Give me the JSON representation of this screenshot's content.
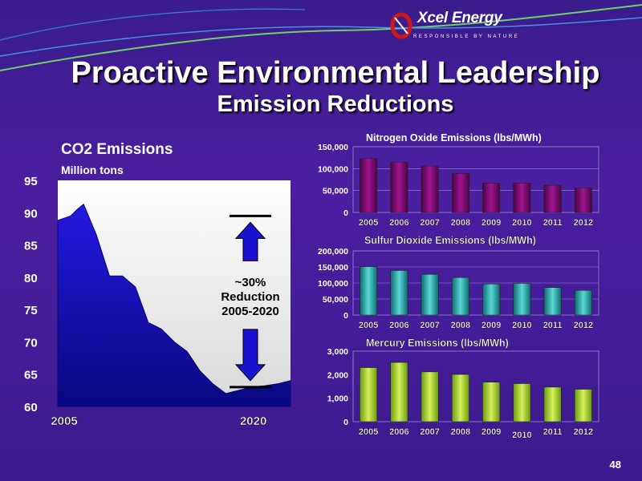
{
  "header": {
    "logo_text": "Xcel Energy",
    "logo_tagline": "RESPONSIBLE BY NATURE",
    "title": "Proactive Environmental Leadership",
    "subtitle": "Emission Reductions",
    "page_number": "48"
  },
  "colors": {
    "background": "#3f1c96",
    "co2_fill": "#1810c8",
    "nox_bar": "#7a0a6a",
    "so2_bar": "#2aa8a8",
    "mercury_bar": "#9ed42a",
    "arrow": "#1a10d0"
  },
  "chart_data": [
    {
      "type": "area",
      "title": "CO2 Emissions",
      "subtitle": "Million tons",
      "x_tick_labels": [
        "2005",
        "2020"
      ],
      "y_tick_labels": [
        "95",
        "90",
        "85",
        "80",
        "75",
        "70",
        "65",
        "60"
      ],
      "ylim": [
        60,
        95
      ],
      "x": [
        2005,
        2006,
        2006.5,
        2007,
        2008,
        2009,
        2010,
        2011,
        2012,
        2013,
        2014,
        2015,
        2016,
        2017,
        2018,
        2019,
        2020,
        2021,
        2022,
        2023
      ],
      "values": [
        88.8,
        89.5,
        90.5,
        91.3,
        86.5,
        80.2,
        80.2,
        78.5,
        73.0,
        72.0,
        70.0,
        68.5,
        65.5,
        63.5,
        62.0,
        62.5,
        63.0,
        63.2,
        63.5,
        64.0
      ],
      "annotation": {
        "text_line1": "~30%",
        "text_line2": "Reduction",
        "text_line3": "2005-2020",
        "upper_level": 89.5,
        "lower_level": 63.0
      },
      "grid": false
    },
    {
      "type": "bar",
      "title": "Nitrogen Oxide Emissions (lbs/MWh)",
      "categories": [
        "2005",
        "2006",
        "2007",
        "2008",
        "2009",
        "2010",
        "2011",
        "2012"
      ],
      "values": [
        123000,
        115000,
        106000,
        89000,
        67000,
        67000,
        62000,
        56000
      ],
      "y_tick_labels": [
        "150,000",
        "100,000",
        "50,000",
        "0"
      ],
      "ylim": [
        0,
        150000
      ],
      "grid": true
    },
    {
      "type": "bar",
      "title": "Sulfur Dioxide Emissions (lbs/MWh)",
      "categories": [
        "2005",
        "2006",
        "2007",
        "2008",
        "2009",
        "2010",
        "2011",
        "2012"
      ],
      "values": [
        151000,
        139000,
        127000,
        117000,
        97000,
        99000,
        86000,
        77000
      ],
      "y_tick_labels": [
        "200,000",
        "150,000",
        "100,000",
        "50,000",
        "0"
      ],
      "ylim": [
        0,
        200000
      ],
      "grid": true
    },
    {
      "type": "bar",
      "title": "Mercury Emissions (lbs/MWh)",
      "categories": [
        "2005",
        "2006",
        "2007",
        "2008",
        "2009",
        "2010",
        "2011",
        "2012"
      ],
      "values": [
        2300,
        2520,
        2120,
        2010,
        1680,
        1620,
        1470,
        1380
      ],
      "y_tick_labels": [
        "3,000",
        "2,000",
        "1,000",
        "0"
      ],
      "ylim": [
        0,
        3000
      ],
      "grid": false
    }
  ]
}
